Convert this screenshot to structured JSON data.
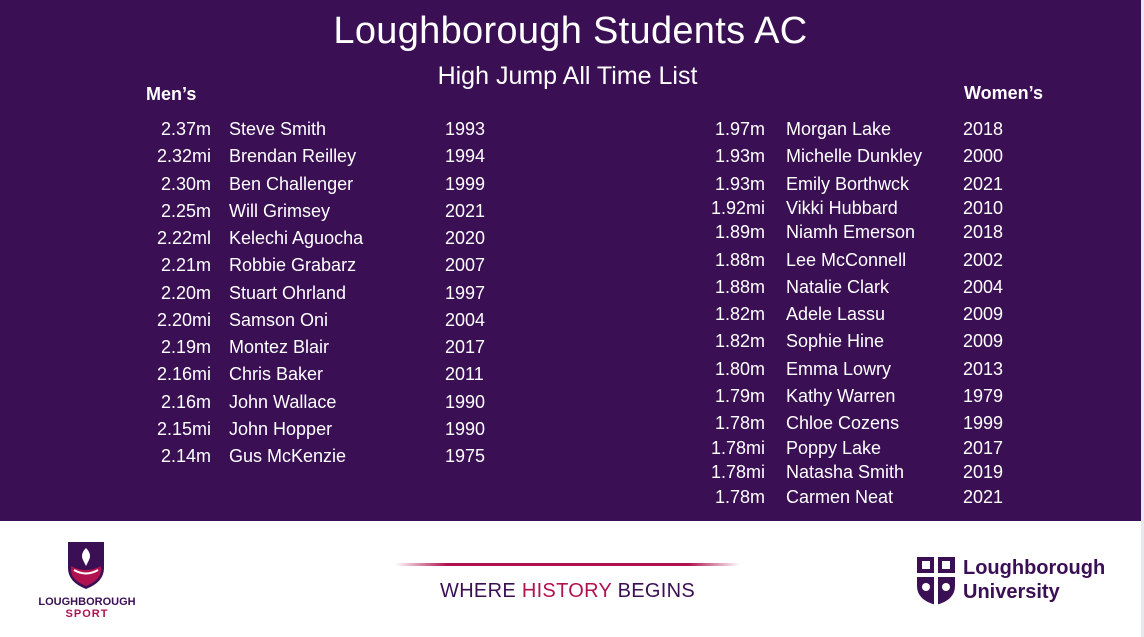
{
  "header": {
    "title": "Loughborough Students AC",
    "subtitle": "High Jump All Time List",
    "men_heading": "Men’s",
    "women_heading": "Women’s"
  },
  "men": [
    {
      "mark": "2.37m",
      "name": "Steve Smith",
      "year": "1993"
    },
    {
      "mark": "2.32mi",
      "name": "Brendan Reilley",
      "year": "1994"
    },
    {
      "mark": "2.30m",
      "name": "Ben Challenger",
      "year": "1999"
    },
    {
      "mark": "2.25m",
      "name": "Will Grimsey",
      "year": "2021"
    },
    {
      "mark": "2.22ml",
      "name": "Kelechi Aguocha",
      "year": "2020"
    },
    {
      "mark": "2.21m",
      "name": "Robbie Grabarz",
      "year": "2007"
    },
    {
      "mark": "2.20m",
      "name": "Stuart Ohrland",
      "year": "1997"
    },
    {
      "mark": "2.20mi",
      "name": "Samson Oni",
      "year": "2004"
    },
    {
      "mark": "2.19m",
      "name": "Montez Blair",
      "year": "2017"
    },
    {
      "mark": "2.16mi",
      "name": "Chris Baker",
      "year": "2011"
    },
    {
      "mark": "2.16m",
      "name": "John Wallace",
      "year": "1990"
    },
    {
      "mark": "2.15mi",
      "name": "John Hopper",
      "year": "1990"
    },
    {
      "mark": "2.14m",
      "name": "Gus McKenzie",
      "year": "1975"
    }
  ],
  "women": [
    {
      "mark": "1.97m",
      "name": "Morgan Lake",
      "year": "2018"
    },
    {
      "mark": "1.93m",
      "name": "Michelle Dunkley",
      "year": "2000"
    },
    {
      "mark": "1.93m",
      "name": "Emily Borthwck",
      "year": "2021"
    },
    {
      "mark": "1.92mi",
      "name": "Vikki Hubbard",
      "year": "2010"
    },
    {
      "mark": "1.89m",
      "name": "Niamh Emerson",
      "year": "2018"
    },
    {
      "mark": "1.88m",
      "name": "Lee McConnell",
      "year": "2002"
    },
    {
      "mark": "1.88m",
      "name": "Natalie Clark",
      "year": "2004"
    },
    {
      "mark": "1.82m",
      "name": "Adele Lassu",
      "year": "2009"
    },
    {
      "mark": "1.82m",
      "name": "Sophie Hine",
      "year": "2009"
    },
    {
      "mark": "1.80m",
      "name": "Emma Lowry",
      "year": "2013"
    },
    {
      "mark": "1.79m",
      "name": "Kathy Warren",
      "year": "1979"
    },
    {
      "mark": "1.78m",
      "name": "Chloe Cozens",
      "year": "1999"
    },
    {
      "mark": "1.78mi",
      "name": "Poppy Lake",
      "year": "2017"
    },
    {
      "mark": "1.78mi",
      "name": "Natasha Smith",
      "year": "2019"
    },
    {
      "mark": "1.78m",
      "name": "Carmen Neat",
      "year": "2021"
    }
  ],
  "footer": {
    "ls_logo_line1": "LOUGHBOROUGH",
    "ls_logo_line2": "SPORT",
    "tagline_part1": "WHERE ",
    "tagline_highlight": "HISTORY",
    "tagline_part2": " BEGINS",
    "university_line1": "Loughborough",
    "university_line2": "University"
  },
  "colors": {
    "background": "#3a0f54",
    "accent": "#b0124f",
    "text": "#ffffff"
  }
}
